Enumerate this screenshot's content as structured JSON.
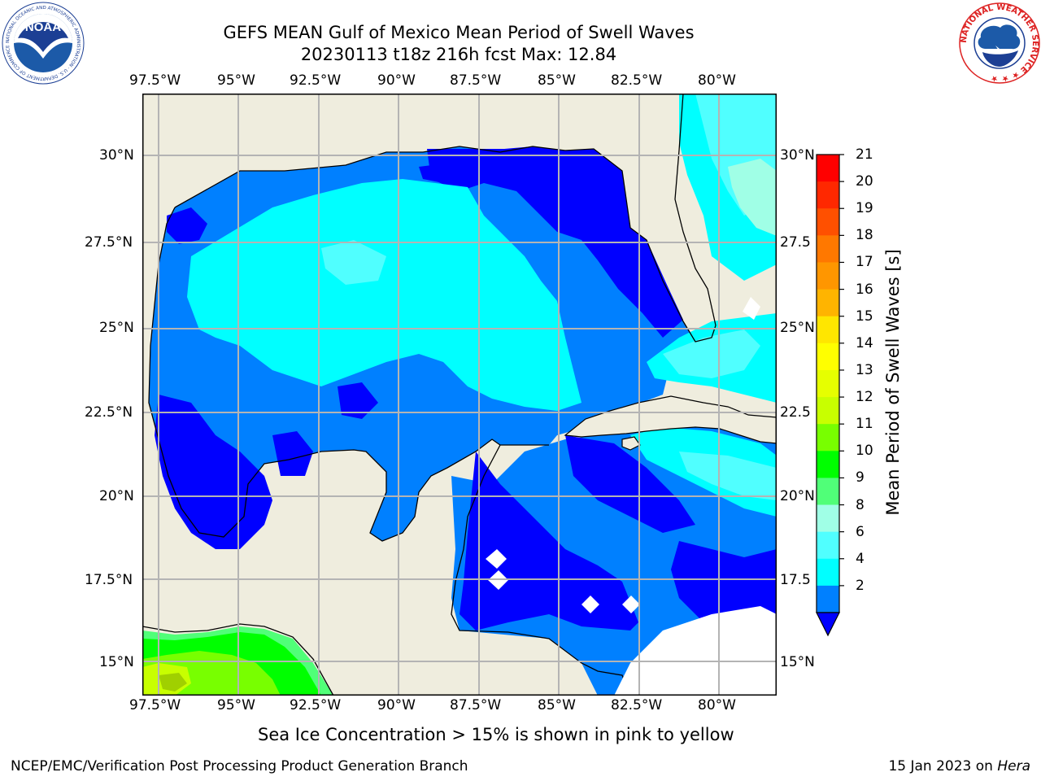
{
  "title_line1": "GEFS MEAN Gulf of Mexico Mean Period of Swell Waves",
  "title_line2": "20230113 t18z 216h fcst   Max: 12.84",
  "lon_labels": [
    "97.5°W",
    "95°W",
    "92.5°W",
    "90°W",
    "87.5°W",
    "85°W",
    "82.5°W",
    "80°W"
  ],
  "lat_labels_left": [
    "30°N",
    "27.5°N",
    "25°N",
    "22.5°N",
    "20°N",
    "17.5°N",
    "15°N"
  ],
  "lat_labels_right": [
    "30°N",
    "27.5",
    "25°N",
    "22.5",
    "20°N",
    "17.5",
    "15°N"
  ],
  "colorbar": {
    "label": "Mean Period of Swell Waves [s]",
    "ticks": [
      "21",
      "20",
      "19",
      "18",
      "17",
      "16",
      "15",
      "14",
      "13",
      "12",
      "11",
      "10",
      "9",
      "8",
      "6",
      "4",
      "2"
    ],
    "colors": [
      "#ff0000",
      "#ff2800",
      "#ff5000",
      "#ff7800",
      "#ff9600",
      "#ffb400",
      "#ffe600",
      "#ffff00",
      "#e6ff00",
      "#c8ff00",
      "#78ff00",
      "#00ff00",
      "#50ff78",
      "#a0ffe6",
      "#50ffff",
      "#00ffff",
      "#0080ff"
    ],
    "extend_color": "#0000ff"
  },
  "sea_ice_note": "Sea Ice Concentration > 15% is shown in pink to yellow",
  "footer_left": "NCEP/EMC/Verification Post Processing Product Generation Branch",
  "footer_right_date": "15 Jan 2023 on ",
  "footer_right_host": "Hera",
  "logos": {
    "noaa_text": "NOAA",
    "noaa_ring": "NATIONAL OCEANIC AND ATMOSPHERIC ADMINISTRATION · U.S. DEPARTMENT OF COMMERCE ·",
    "nws_ring": "NATIONAL WEATHER SERVICE ★ ★ ★"
  },
  "map_colors": {
    "land": "#efedde",
    "c_2_4": "#0080ff",
    "c_lt2": "#0000ff",
    "c_4_6": "#00ffff",
    "c_6_8": "#50ffff",
    "c_8_9": "#a0ffe6",
    "c_9_10": "#50ff78",
    "c_10_11": "#00ff00",
    "c_11_12": "#78ff00",
    "c_12_13": "#c8ff00"
  }
}
